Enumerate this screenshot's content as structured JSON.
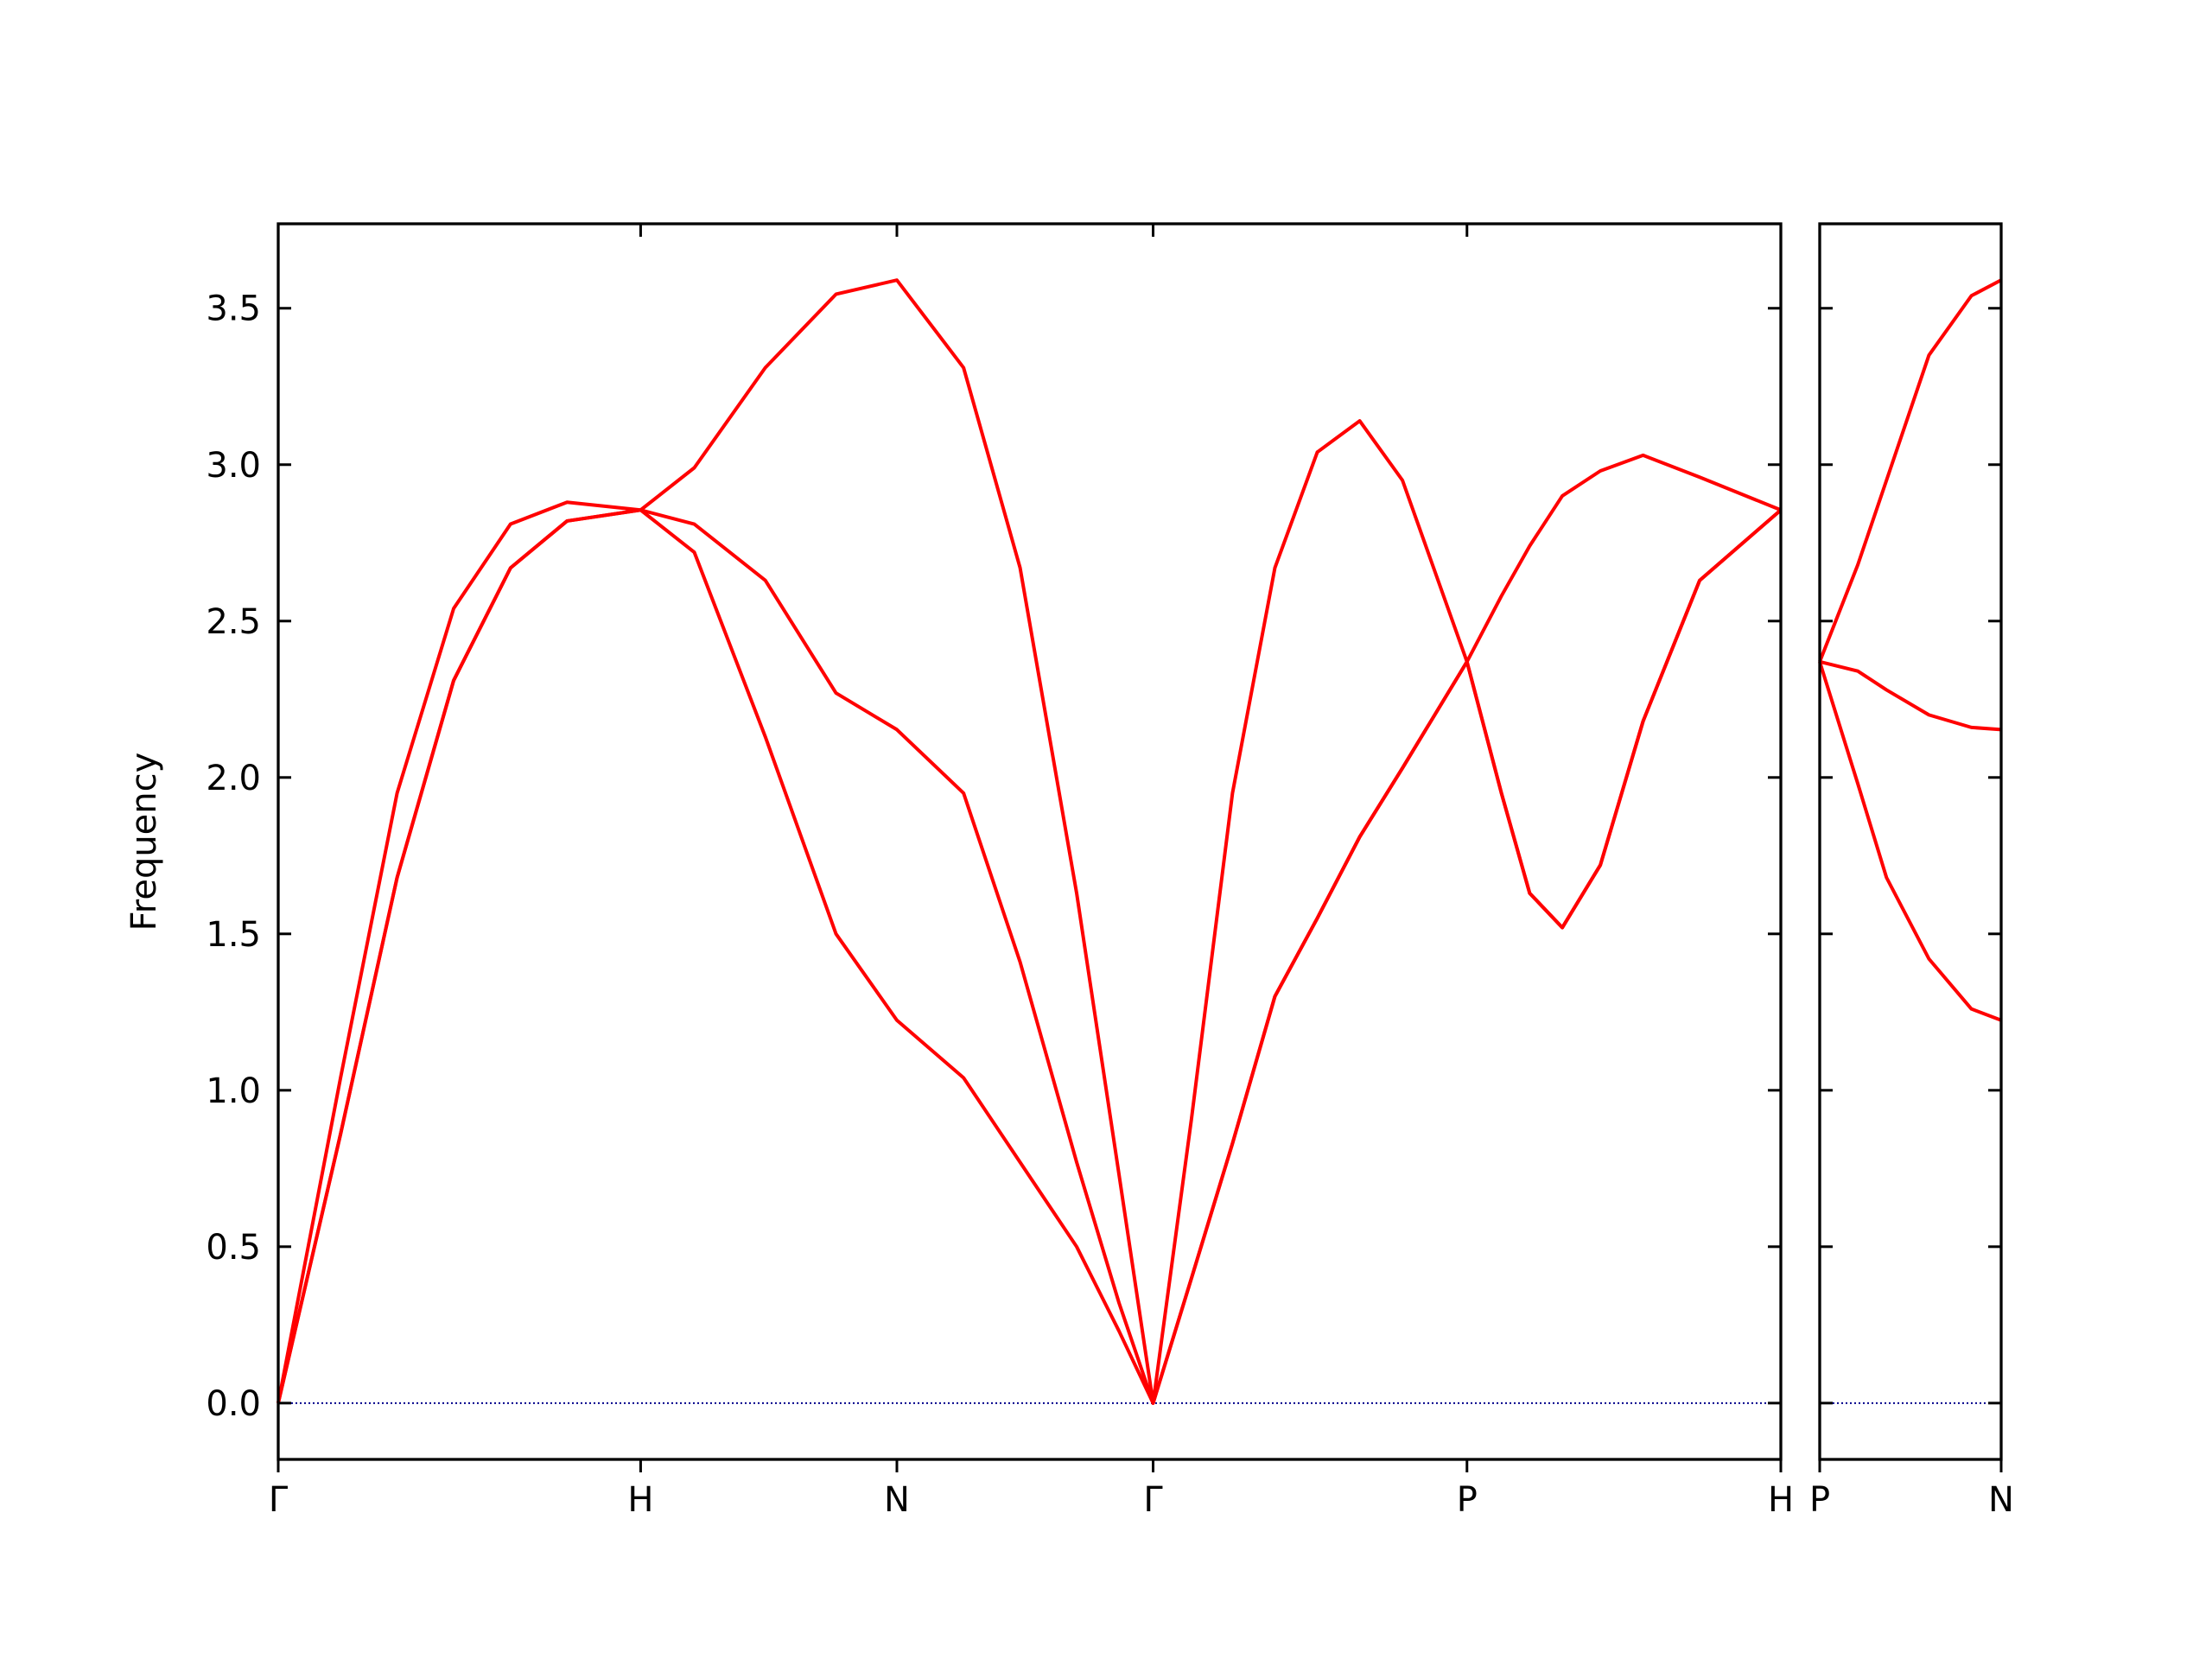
{
  "chart_data": [
    {
      "type": "line",
      "ylabel": "Frequency",
      "x": [
        0,
        0.172,
        0.328,
        0.484,
        0.641,
        0.797,
        1.0,
        1.148,
        1.344,
        1.539,
        1.707,
        1.891,
        2.047,
        2.203,
        2.32,
        2.414,
        2.52,
        2.633,
        2.75,
        2.867,
        2.984,
        3.102,
        3.28,
        3.375,
        3.453,
        3.543,
        3.648,
        3.766,
        3.922,
        4.146
      ],
      "series": [
        {
          "color": "#ff0000",
          "values": [
            0,
            0.86,
            1.68,
            2.31,
            2.67,
            2.82,
            2.855,
            2.72,
            2.13,
            1.5,
            1.224,
            1.04,
            0.77,
            0.5,
            0.23,
            0,
            0.4,
            0.83,
            1.3,
            1.55,
            1.81,
            2.03,
            2.37,
            1.95,
            1.63,
            1.52,
            1.72,
            2.18,
            2.63,
            2.855
          ]
        },
        {
          "color": "#ff0000",
          "values": [
            0,
            0.86,
            1.68,
            2.31,
            2.67,
            2.82,
            2.855,
            2.81,
            2.63,
            2.27,
            2.153,
            1.95,
            1.41,
            0.77,
            0.32,
            0,
            0.4,
            0.83,
            1.3,
            1.55,
            1.81,
            2.03,
            2.37,
            1.95,
            1.63,
            1.52,
            1.72,
            2.18,
            2.63,
            2.855
          ]
        },
        {
          "color": "#ff0000",
          "values": [
            0,
            1.04,
            1.95,
            2.54,
            2.81,
            2.88,
            2.855,
            2.99,
            3.31,
            3.545,
            3.59,
            3.31,
            2.67,
            1.63,
            0.73,
            0,
            0.91,
            1.95,
            2.67,
            3.04,
            3.14,
            2.95,
            2.37,
            2.58,
            2.74,
            2.9,
            2.98,
            3.03,
            2.96,
            2.855
          ]
        }
      ],
      "xlim": [
        0,
        4.146
      ],
      "ylim": [
        -0.18,
        3.77
      ],
      "xticks": [
        {
          "value": 0,
          "label": "Γ"
        },
        {
          "value": 1.0,
          "label": "H"
        },
        {
          "value": 1.707,
          "label": "N"
        },
        {
          "value": 2.414,
          "label": "Γ"
        },
        {
          "value": 3.28,
          "label": "P"
        },
        {
          "value": 4.146,
          "label": "H"
        }
      ],
      "yticks": [
        {
          "value": 0,
          "label": "0.0"
        },
        {
          "value": 0.5,
          "label": "0.5"
        },
        {
          "value": 1,
          "label": "1.0"
        },
        {
          "value": 1.5,
          "label": "1.5"
        },
        {
          "value": 2,
          "label": "2.0"
        },
        {
          "value": 2.5,
          "label": "2.5"
        },
        {
          "value": 3,
          "label": "3.0"
        },
        {
          "value": 3.5,
          "label": "3.5"
        }
      ],
      "hline": {
        "value": 0,
        "color": "#00008b"
      }
    },
    {
      "type": "line",
      "x": [
        0,
        0.105,
        0.184,
        0.301,
        0.418,
        0.5
      ],
      "series": [
        {
          "color": "#ff0000",
          "values": [
            2.37,
            1.98,
            1.68,
            1.42,
            1.26,
            1.224
          ]
        },
        {
          "color": "#ff0000",
          "values": [
            2.37,
            2.34,
            2.28,
            2.2,
            2.16,
            2.153
          ]
        },
        {
          "color": "#ff0000",
          "values": [
            2.37,
            2.68,
            2.95,
            3.35,
            3.54,
            3.59
          ]
        }
      ],
      "xlim": [
        0,
        0.5
      ],
      "ylim": [
        -0.18,
        3.77
      ],
      "xticks": [
        {
          "value": 0,
          "label": "P"
        },
        {
          "value": 0.5,
          "label": "N"
        }
      ],
      "yticks": [
        0,
        0.5,
        1,
        1.5,
        2,
        2.5,
        3,
        3.5
      ],
      "hline": {
        "value": 0,
        "color": "#00008b"
      }
    }
  ]
}
